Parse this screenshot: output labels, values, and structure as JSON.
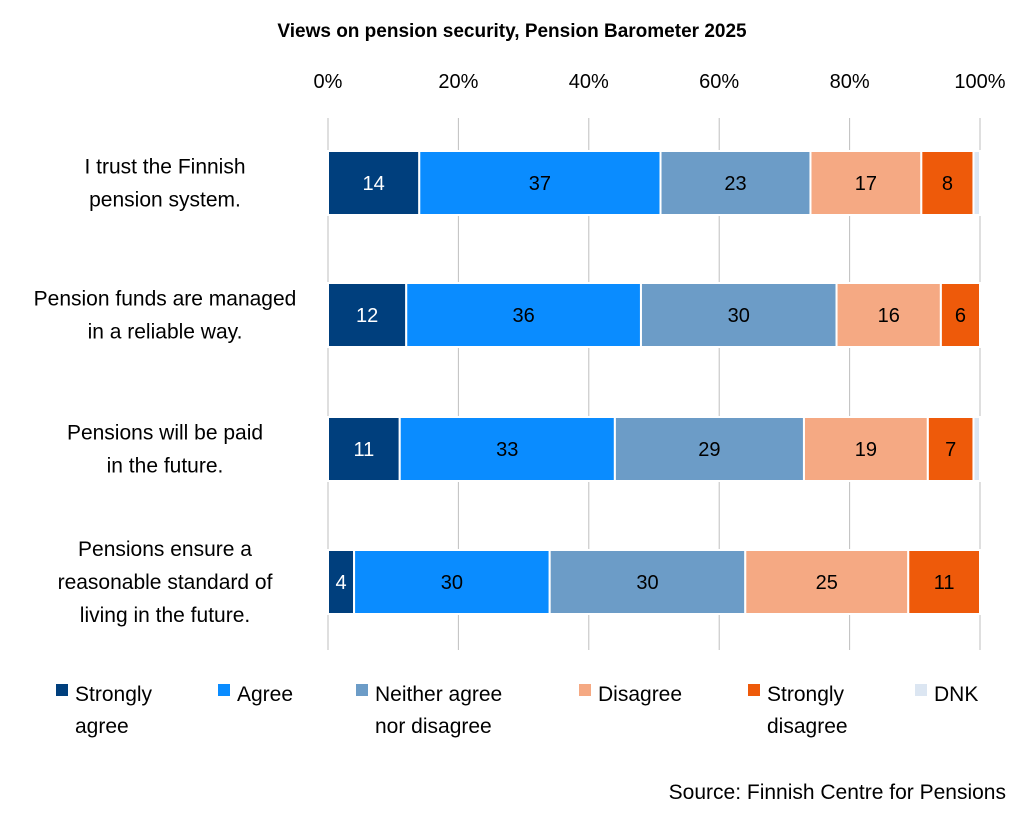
{
  "chart_data": {
    "type": "bar",
    "orientation": "horizontal",
    "stacked": "percent",
    "title": "Views on pension security, Pension Barometer 2025",
    "source": "Source: Finnish Centre for Pensions",
    "x_ticks": [
      "0%",
      "20%",
      "40%",
      "60%",
      "80%",
      "100%"
    ],
    "xlim": [
      0,
      100
    ],
    "grid": "vertical",
    "legend_position": "bottom",
    "categories": [
      [
        "I trust the Finnish",
        "pension system."
      ],
      [
        "Pension funds are managed",
        "in a reliable way."
      ],
      [
        "Pensions will be paid",
        "in the future."
      ],
      [
        "Pensions ensure a",
        "reasonable standard of",
        "living in the future."
      ]
    ],
    "series": [
      {
        "name": [
          "Strongly",
          "agree"
        ],
        "color": "#003F7D",
        "label_color": "#ffffff",
        "values": [
          14,
          12,
          11,
          4
        ]
      },
      {
        "name": [
          "Agree"
        ],
        "color": "#0A8CFF",
        "label_color": "#000000",
        "values": [
          37,
          36,
          33,
          30
        ]
      },
      {
        "name": [
          "Neither agree",
          "nor disagree"
        ],
        "color": "#6C9CC7",
        "label_color": "#000000",
        "values": [
          23,
          30,
          29,
          30
        ]
      },
      {
        "name": [
          "Disagree"
        ],
        "color": "#F5A983",
        "label_color": "#000000",
        "values": [
          17,
          16,
          19,
          25
        ]
      },
      {
        "name": [
          "Strongly",
          "disagree"
        ],
        "color": "#EE5A0A",
        "label_color": "#000000",
        "values": [
          8,
          6,
          7,
          11
        ]
      },
      {
        "name": [
          "DNK"
        ],
        "color": "#DCE6F2",
        "label_color": "#000000",
        "values": [
          1,
          0,
          1,
          0
        ]
      }
    ]
  }
}
